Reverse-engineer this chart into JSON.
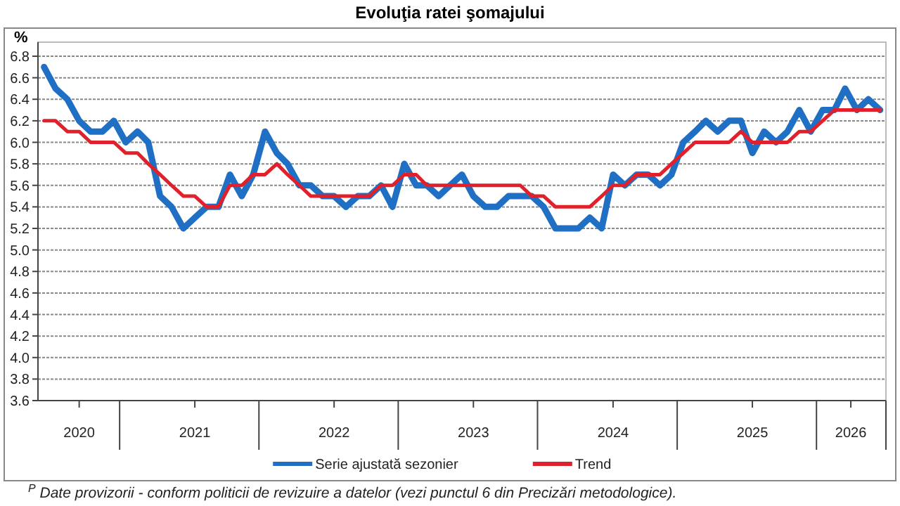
{
  "chart_data": {
    "type": "line",
    "title": "Evoluţia ratei şomajului",
    "ylabel": "%",
    "x": [
      "2020-06",
      "2020-07",
      "2020-08",
      "2020-09",
      "2020-10",
      "2020-11",
      "2020-12",
      "2021-01",
      "2021-02",
      "2021-03",
      "2021-04",
      "2021-05",
      "2021-06",
      "2021-07",
      "2021-08",
      "2021-09",
      "2021-10",
      "2021-11",
      "2021-12",
      "2022-01",
      "2022-02",
      "2022-03",
      "2022-04",
      "2022-05",
      "2022-06",
      "2022-07",
      "2022-08",
      "2022-09",
      "2022-10",
      "2022-11",
      "2022-12",
      "2023-01",
      "2023-02",
      "2023-03",
      "2023-04",
      "2023-05",
      "2023-06",
      "2023-07",
      "2023-08",
      "2023-09",
      "2023-10",
      "2023-11",
      "2023-12",
      "2024-01",
      "2024-02",
      "2024-03",
      "2024-04",
      "2024-05",
      "2024-06",
      "2024-07",
      "2024-08",
      "2024-09",
      "2024-10",
      "2024-11",
      "2024-12",
      "2025-01",
      "2025-02",
      "2025-03",
      "2025-04",
      "2025-05",
      "2025-06",
      "2025-07",
      "2025-08",
      "2025-09",
      "2025-10",
      "2025-11",
      "2025-12",
      "2026-01",
      "2026-02",
      "2026-03",
      "2026-04",
      "2026-05",
      "2026-06"
    ],
    "series": [
      {
        "name": "Serie ajustată sezonier",
        "color": "#1f6fc5",
        "values": [
          6.7,
          6.5,
          6.4,
          6.2,
          6.1,
          6.1,
          6.2,
          6.0,
          6.1,
          6.0,
          5.5,
          5.4,
          5.2,
          5.3,
          5.4,
          5.4,
          5.7,
          5.5,
          5.7,
          6.1,
          5.9,
          5.8,
          5.6,
          5.6,
          5.5,
          5.5,
          5.4,
          5.5,
          5.5,
          5.6,
          5.4,
          5.8,
          5.6,
          5.6,
          5.5,
          5.6,
          5.7,
          5.5,
          5.4,
          5.4,
          5.5,
          5.5,
          5.5,
          5.4,
          5.2,
          5.2,
          5.2,
          5.3,
          5.2,
          5.7,
          5.6,
          5.7,
          5.7,
          5.6,
          5.7,
          6.0,
          6.1,
          6.2,
          6.1,
          6.2,
          6.2,
          5.9,
          6.1,
          6.0,
          6.1,
          6.3,
          6.1,
          6.3,
          6.3,
          6.5,
          6.3,
          6.4,
          6.3
        ]
      },
      {
        "name": "Trend",
        "color": "#e0202a",
        "values": [
          6.2,
          6.2,
          6.1,
          6.1,
          6.0,
          6.0,
          6.0,
          5.9,
          5.9,
          5.8,
          5.7,
          5.6,
          5.5,
          5.5,
          5.4,
          5.4,
          5.6,
          5.6,
          5.7,
          5.7,
          5.8,
          5.7,
          5.6,
          5.5,
          5.5,
          5.5,
          5.5,
          5.5,
          5.5,
          5.6,
          5.6,
          5.7,
          5.7,
          5.6,
          5.6,
          5.6,
          5.6,
          5.6,
          5.6,
          5.6,
          5.6,
          5.6,
          5.5,
          5.5,
          5.4,
          5.4,
          5.4,
          5.4,
          5.5,
          5.6,
          5.6,
          5.7,
          5.7,
          5.7,
          5.8,
          5.9,
          6.0,
          6.0,
          6.0,
          6.0,
          6.1,
          6.0,
          6.0,
          6.0,
          6.0,
          6.1,
          6.1,
          6.2,
          6.3,
          6.3,
          6.3,
          6.3,
          6.3
        ]
      }
    ],
    "xlim": [
      "2020-05-16",
      "2026-06-16"
    ],
    "xticks": [
      {
        "value": "2020-09-01",
        "label": "2020"
      },
      {
        "value": "2020-12-16",
        "label": null
      },
      {
        "value": "2021-07-01",
        "label": "2021"
      },
      {
        "value": "2021-12-16",
        "label": null
      },
      {
        "value": "2022-07-01",
        "label": "2022"
      },
      {
        "value": "2022-12-16",
        "label": null
      },
      {
        "value": "2023-07-01",
        "label": "2023"
      },
      {
        "value": "2023-12-16",
        "label": null
      },
      {
        "value": "2024-07-01",
        "label": "2024"
      },
      {
        "value": "2024-12-16",
        "label": null
      },
      {
        "value": "2025-07-01",
        "label": "2025"
      },
      {
        "value": "2025-12-16",
        "label": null
      },
      {
        "value": "2026-03-16",
        "label": "2026"
      }
    ],
    "ylim": [
      3.6,
      6.8
    ],
    "yticks": [
      3.6,
      3.8,
      {
        "value": 4,
        "label": "4.0"
      },
      4.2,
      4.4,
      4.6,
      4.8,
      {
        "value": 5,
        "label": "5.0"
      },
      5.2,
      5.4,
      5.6,
      5.8,
      {
        "value": 6,
        "label": "6.0"
      },
      6.2,
      6.4,
      6.6,
      6.8
    ],
    "grid": "y",
    "legend": "bottom",
    "line_style": "solid",
    "marker": "none",
    "annotations": [
      "$^{P}$ Date provizorii - conform politicii de revizuire a datelor (vezi punctul 6 din Precizări metodologice)."
    ]
  }
}
